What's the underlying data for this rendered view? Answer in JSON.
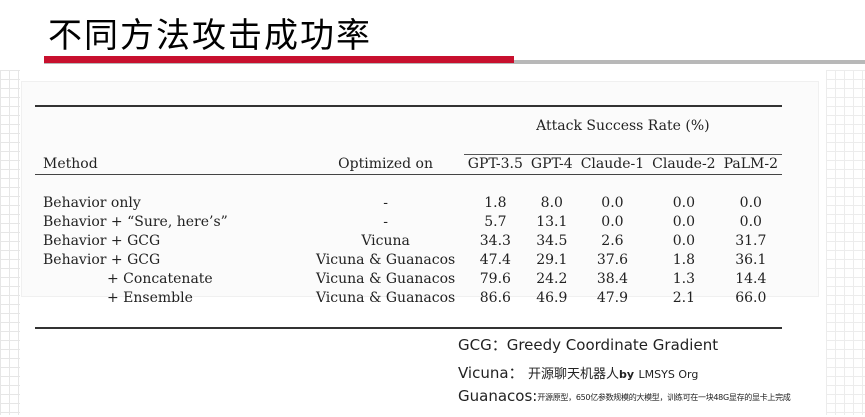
{
  "slide": {
    "title": "不同方法攻击成功率"
  },
  "table": {
    "col_method": "Method",
    "col_optimized": "Optimized on",
    "group_header": "Attack Success Rate (%)",
    "models": [
      "GPT-3.5",
      "GPT-4",
      "Claude-1",
      "Claude-2",
      "PaLM-2"
    ],
    "rows": [
      {
        "method": "Behavior only",
        "optimized": "-",
        "values": [
          "1.8",
          "8.0",
          "0.0",
          "0.0",
          "0.0"
        ]
      },
      {
        "method": "Behavior + “Sure, here’s”",
        "optimized": "-",
        "values": [
          "5.7",
          "13.1",
          "0.0",
          "0.0",
          "0.0"
        ]
      },
      {
        "method": "Behavior + GCG",
        "optimized": "Vicuna",
        "values": [
          "34.3",
          "34.5",
          "2.6",
          "0.0",
          "31.7"
        ]
      },
      {
        "method": "Behavior + GCG",
        "optimized": "Vicuna & Guanacos",
        "values": [
          "47.4",
          "29.1",
          "37.6",
          "1.8",
          "36.1"
        ]
      },
      {
        "method": "+ Concatenate",
        "optimized": "Vicuna & Guanacos",
        "values": [
          "79.6",
          "24.2",
          "38.4",
          "1.3",
          "14.4"
        ]
      },
      {
        "method": "+ Ensemble",
        "optimized": "Vicuna & Guanacos",
        "values": [
          "86.6",
          "46.9",
          "47.9",
          "2.1",
          "66.0"
        ]
      }
    ]
  },
  "notes": {
    "gcg": "GCG：Greedy Coordinate Gradient",
    "vicuna_term": "Vicuna：",
    "vicuna_desc": "开源聊天机器人",
    "vicuna_by": "by",
    "vicuna_org": "LMSYS Org",
    "guanacos_term": "Guanacos:",
    "guanacos_desc": "开源原型，650亿参数规模的大模型，训练可在一块48G显存的显卡上完成"
  }
}
